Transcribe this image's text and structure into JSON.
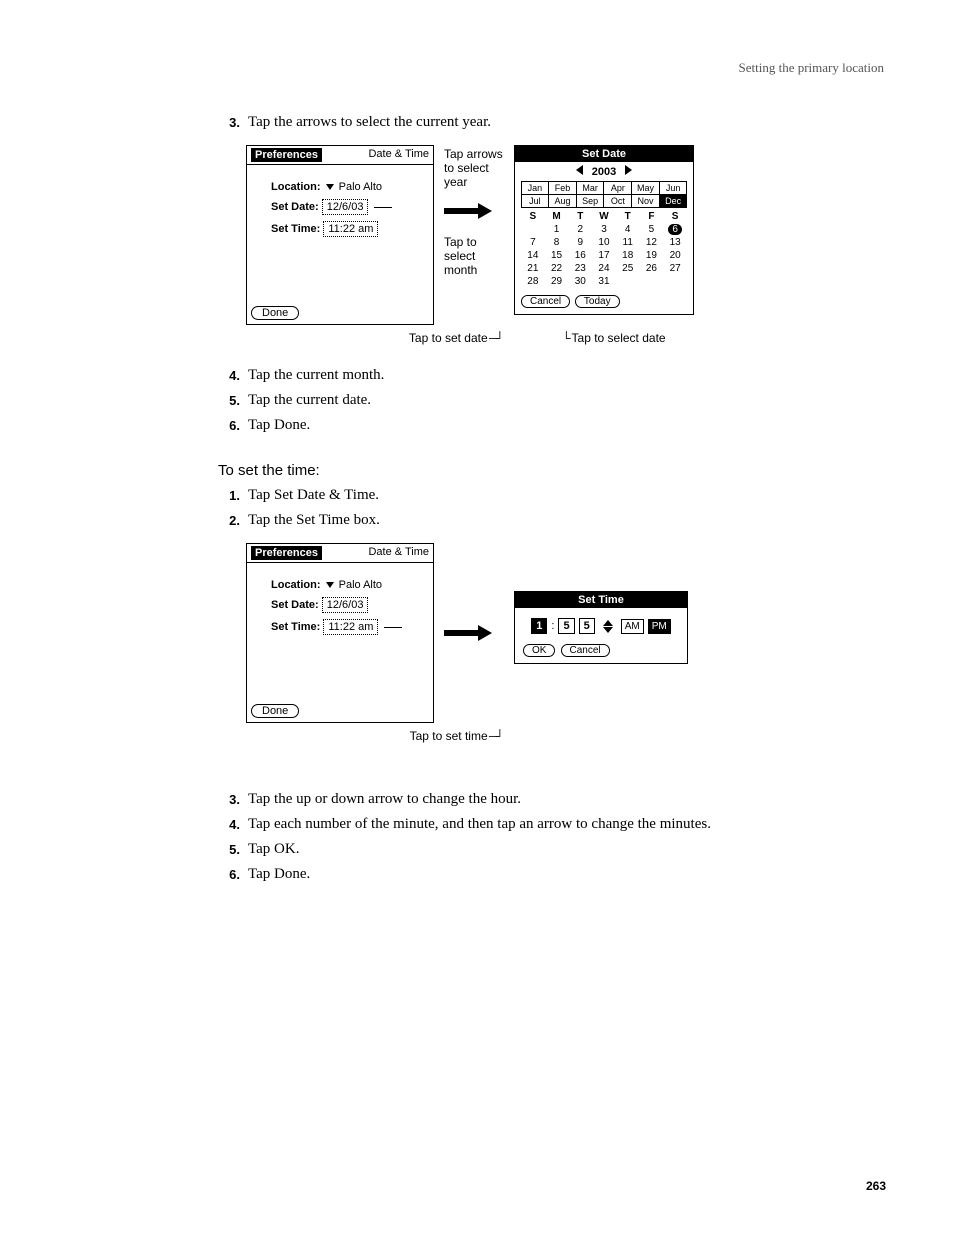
{
  "header": "Setting the primary location",
  "section1": {
    "steps_a": [
      {
        "n": "3.",
        "t": "Tap the arrows to select the current year."
      }
    ],
    "steps_b": [
      {
        "n": "4.",
        "t": "Tap the current month."
      },
      {
        "n": "5.",
        "t": "Tap the current date."
      },
      {
        "n": "6.",
        "t": "Tap Done."
      }
    ]
  },
  "section2": {
    "heading": "To set the time:",
    "steps_a": [
      {
        "n": "1.",
        "t": "Tap Set Date & Time."
      },
      {
        "n": "2.",
        "t": "Tap the Set Time box."
      }
    ],
    "steps_b": [
      {
        "n": "3.",
        "t": "Tap the up or down arrow to change the hour."
      },
      {
        "n": "4.",
        "t": "Tap each number of the minute, and then tap an arrow to change the minutes."
      },
      {
        "n": "5.",
        "t": "Tap OK."
      },
      {
        "n": "6.",
        "t": "Tap Done."
      }
    ]
  },
  "prefs": {
    "title_left": "Preferences",
    "title_right": "Date & Time",
    "location_label": "Location:",
    "location_value": "Palo Alto",
    "setdate_label": "Set Date:",
    "setdate_value": "12/6/03",
    "settime_label": "Set Time:",
    "settime_value": "11:22 am",
    "done": "Done"
  },
  "callouts": {
    "tap_arrows": "Tap arrows to select year",
    "tap_month": "Tap to select month",
    "tap_set_date": "Tap to set date",
    "tap_select_date": "Tap to select date",
    "tap_set_time": "Tap to set time"
  },
  "setdate": {
    "title": "Set Date",
    "year": "2003",
    "months": [
      "Jan",
      "Feb",
      "Mar",
      "Apr",
      "May",
      "Jun",
      "Jul",
      "Aug",
      "Sep",
      "Oct",
      "Nov",
      "Dec"
    ],
    "selected_month_index": 11,
    "dow": [
      "S",
      "M",
      "T",
      "W",
      "T",
      "F",
      "S"
    ],
    "weeks": [
      [
        "",
        "1",
        "2",
        "3",
        "4",
        "5",
        "6"
      ],
      [
        "7",
        "8",
        "9",
        "10",
        "11",
        "12",
        "13"
      ],
      [
        "14",
        "15",
        "16",
        "17",
        "18",
        "19",
        "20"
      ],
      [
        "21",
        "22",
        "23",
        "24",
        "25",
        "26",
        "27"
      ],
      [
        "28",
        "29",
        "30",
        "31",
        "",
        "",
        ""
      ]
    ],
    "selected_day": "6",
    "cancel": "Cancel",
    "today": "Today"
  },
  "settime": {
    "title": "Set Time",
    "hour": "1",
    "min1": "5",
    "min2": "5",
    "am": "AM",
    "pm": "PM",
    "ok": "OK",
    "cancel": "Cancel"
  },
  "pagenum": "263"
}
